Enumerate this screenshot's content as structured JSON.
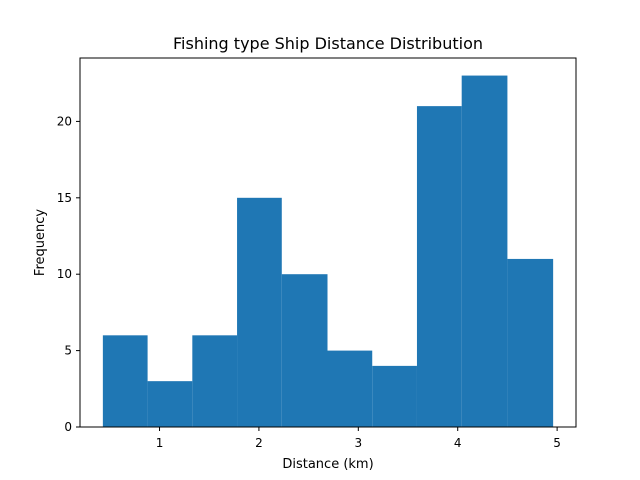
{
  "chart_data": {
    "type": "bar",
    "title": "Fishing type Ship Distance Distribution",
    "xlabel": "Distance (km)",
    "ylabel": "Frequency",
    "bins": [
      {
        "start": 0.43,
        "end": 0.88,
        "count": 6
      },
      {
        "start": 0.88,
        "end": 1.33,
        "count": 3
      },
      {
        "start": 1.33,
        "end": 1.78,
        "count": 6
      },
      {
        "start": 1.78,
        "end": 2.23,
        "count": 15
      },
      {
        "start": 2.23,
        "end": 2.69,
        "count": 10
      },
      {
        "start": 2.69,
        "end": 3.14,
        "count": 5
      },
      {
        "start": 3.14,
        "end": 3.59,
        "count": 4
      },
      {
        "start": 3.59,
        "end": 4.04,
        "count": 21
      },
      {
        "start": 4.04,
        "end": 4.5,
        "count": 23
      },
      {
        "start": 4.5,
        "end": 4.96,
        "count": 11
      }
    ],
    "xlim": [
      0.2,
      5.19
    ],
    "ylim": [
      0,
      24.15
    ],
    "xticks": [
      1,
      2,
      3,
      4,
      5
    ],
    "yticks": [
      0,
      5,
      10,
      15,
      20
    ],
    "grid": false,
    "bar_color": "#1f77b4"
  }
}
